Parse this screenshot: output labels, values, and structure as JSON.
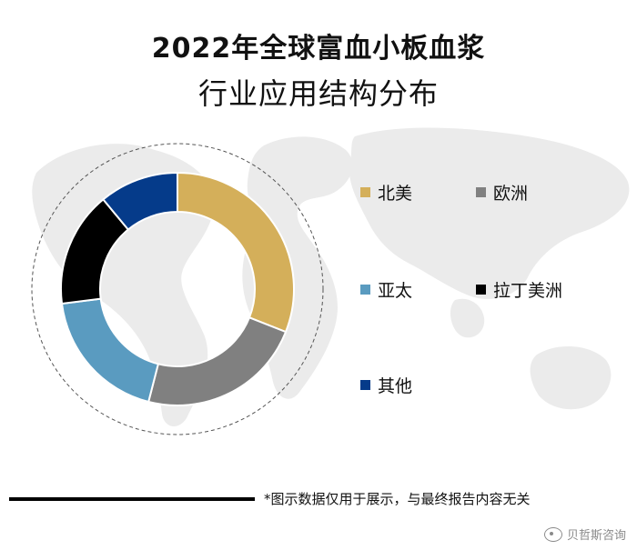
{
  "title_line1": "2022年全球富血小板血浆",
  "title_line2": "行业应用结构分布",
  "footnote": "*图示数据仅用于展示，与最终报告内容无关",
  "watermark": "贝哲斯咨询",
  "chart_data": {
    "type": "pie",
    "subtype": "donut",
    "title": "2022年全球富血小板血浆行业应用结构分布",
    "categories": [
      "北美",
      "欧洲",
      "亚太",
      "拉丁美洲",
      "其他"
    ],
    "values": [
      31,
      23,
      19,
      16,
      11
    ],
    "colors": [
      "#D4AF5A",
      "#808080",
      "#5A9BC0",
      "#000000",
      "#053B8A"
    ],
    "legend_placement": "right"
  }
}
